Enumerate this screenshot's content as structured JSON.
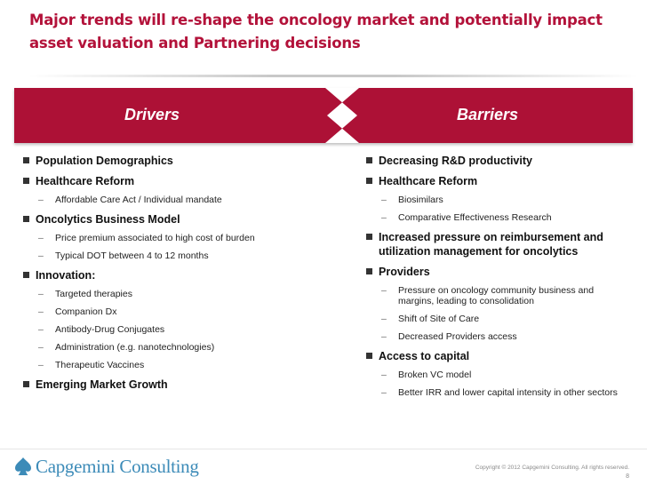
{
  "title": "Major trends will re-shape the oncology market and potentially impact asset valuation and Partnering decisions",
  "banner": {
    "drivers_label": "Drivers",
    "barriers_label": "Barriers",
    "color": "#ad1136"
  },
  "drivers": [
    {
      "text": "Population Demographics",
      "subitems": []
    },
    {
      "text": "Healthcare Reform",
      "subitems": [
        "Affordable Care Act  / Individual mandate"
      ]
    },
    {
      "text": "Oncolytics Business Model",
      "subitems": [
        "Price premium associated to high cost of burden",
        "Typical DOT between 4 to 12 months"
      ]
    },
    {
      "text": "Innovation:",
      "subitems": [
        "Targeted therapies",
        "Companion Dx",
        "Antibody-Drug Conjugates",
        "Administration (e.g. nanotechnologies)",
        "Therapeutic Vaccines"
      ]
    },
    {
      "text": "Emerging Market Growth",
      "subitems": []
    }
  ],
  "barriers": [
    {
      "text": "Decreasing R&D productivity",
      "subitems": []
    },
    {
      "text": "Healthcare Reform",
      "subitems": [
        "Biosimilars",
        "Comparative Effectiveness Research"
      ]
    },
    {
      "text": "Increased pressure on reimbursement and utilization management for oncolytics",
      "subitems": []
    },
    {
      "text": "Providers",
      "subitems": [
        "Pressure on oncology community business and margins, leading to consolidation",
        "Shift of Site of Care",
        "Decreased Providers access"
      ]
    },
    {
      "text": "Access to capital",
      "subitems": [
        "Broken VC model",
        "Better IRR and lower capital intensity in other sectors"
      ]
    }
  ],
  "footer": {
    "logo_text": "Capgemini Consulting",
    "logo_icon": "spade-icon",
    "copyright": "Copyright © 2012 Capgemini Consulting. All rights reserved.",
    "page_number": "8"
  },
  "colors": {
    "title": "#b3123a",
    "logo": "#3c8bb8"
  }
}
